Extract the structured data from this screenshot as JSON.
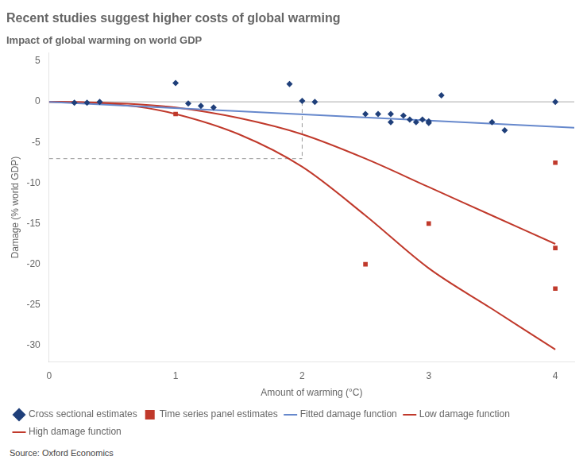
{
  "chart_data": {
    "type": "scatter",
    "title": "Recent studies suggest higher costs of global warming",
    "subtitle": "Impact of global warming on world GDP",
    "annotations": [
      "Source: Oxford Economics"
    ],
    "xlabel": "Amount of warming (°C)",
    "ylabel": "Damage (% world GDP)",
    "xlim": [
      0,
      4.15
    ],
    "ylim": [
      -32,
      6
    ],
    "xticks": [
      0,
      1,
      2,
      3,
      4
    ],
    "yticks": [
      5,
      0,
      -5,
      -10,
      -15,
      -20,
      -25,
      -30
    ],
    "grid": false,
    "legend": "lower left",
    "series": [
      {
        "name": "Cross sectional estimates",
        "type": "scatter",
        "marker": "diamond",
        "color": "#1f3f7a",
        "x": [
          0.2,
          0.3,
          0.4,
          1.0,
          1.1,
          1.2,
          1.3,
          1.9,
          2.0,
          2.1,
          2.5,
          2.6,
          2.7,
          2.7,
          2.8,
          2.85,
          2.9,
          2.95,
          3.0,
          3.0,
          3.1,
          3.5,
          3.6,
          4.0
        ],
        "values": [
          -0.1,
          -0.1,
          0.0,
          2.3,
          -0.2,
          -0.5,
          -0.7,
          2.2,
          0.1,
          0.0,
          -1.5,
          -1.5,
          -1.5,
          -2.5,
          -1.7,
          -2.2,
          -2.5,
          -2.2,
          -2.4,
          -2.6,
          0.8,
          -2.5,
          -3.5,
          0.0
        ]
      },
      {
        "name": "Time series panel estimates",
        "type": "scatter",
        "marker": "square",
        "color": "#c0392b",
        "x": [
          1.0,
          2.5,
          3.0,
          4.0,
          4.0,
          4.0
        ],
        "values": [
          -1.5,
          -20.0,
          -15.0,
          -7.5,
          -18.0,
          -23.0
        ]
      },
      {
        "name": "Fitted damage function",
        "type": "line",
        "color": "#6688cc",
        "x": [
          0.0,
          4.15
        ],
        "values": [
          0.0,
          -3.2
        ]
      },
      {
        "name": "Low damage function",
        "type": "line",
        "color": "#c0392b",
        "x": [
          0.0,
          0.3,
          0.7,
          1.0,
          1.5,
          2.0,
          2.5,
          3.0,
          3.5,
          4.0
        ],
        "values": [
          0.0,
          -0.05,
          -0.3,
          -0.7,
          -2.0,
          -4.0,
          -7.0,
          -10.5,
          -14.0,
          -17.5
        ]
      },
      {
        "name": "High damage function",
        "type": "line",
        "color": "#c0392b",
        "x": [
          0.0,
          0.3,
          0.7,
          1.0,
          1.5,
          2.0,
          2.5,
          3.0,
          3.5,
          4.0
        ],
        "values": [
          0.0,
          -0.1,
          -0.6,
          -1.5,
          -4.0,
          -8.0,
          -14.0,
          -20.5,
          -25.5,
          -30.5
        ]
      },
      {
        "type": "line",
        "line_style": "dashed",
        "color": "#999999",
        "x": [
          0,
          2.0
        ],
        "values": [
          -7.0,
          -7.0
        ]
      },
      {
        "type": "line",
        "line_style": "dashed",
        "color": "#999999",
        "x": [
          2.0,
          2.0
        ],
        "values": [
          0.0,
          -7.0
        ]
      },
      {
        "type": "line",
        "color": "#aaaaaa",
        "x": [
          0,
          4.15
        ],
        "values": [
          0,
          0
        ]
      }
    ]
  }
}
